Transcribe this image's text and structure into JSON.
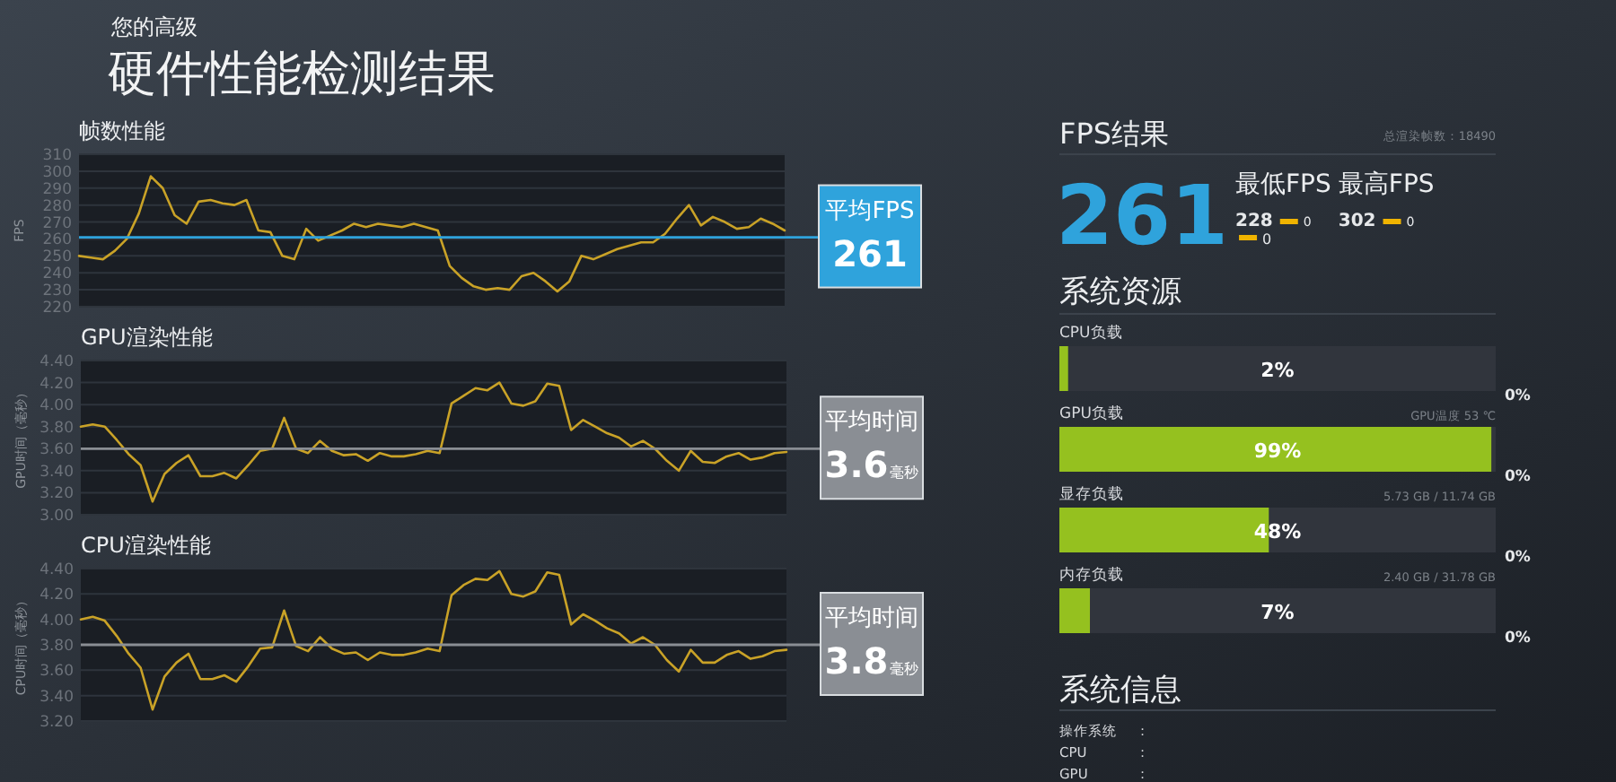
{
  "chart_data": [
    {
      "type": "other",
      "title": "硬件性能检测结果",
      "subtitle": "您的高级"
    },
    {
      "type": "line",
      "title": "帧数性能",
      "ylabel": "FPS",
      "grid": "y",
      "categories": [
        null,
        null,
        null,
        null,
        null,
        null,
        null,
        null,
        null,
        null,
        null,
        null,
        null,
        null,
        null,
        null,
        null,
        null,
        null,
        null,
        null,
        null,
        null,
        null,
        null,
        null,
        null,
        null,
        null,
        null,
        null,
        null,
        null,
        null,
        null,
        null,
        null,
        null,
        null,
        null,
        null,
        null,
        null,
        null,
        null,
        null,
        null,
        null,
        null,
        null,
        null,
        null,
        null,
        null,
        null,
        null,
        null,
        null,
        null,
        null
      ],
      "series": [
        {
          "color": "#c9a227",
          "values": [
            250,
            249,
            248,
            253,
            260,
            275,
            297,
            290,
            274,
            269,
            282,
            283,
            281,
            280,
            283,
            265,
            264,
            250,
            248,
            266,
            259,
            262,
            265,
            269,
            267,
            269,
            268,
            267,
            269,
            267,
            265,
            244,
            237,
            232,
            230,
            231,
            230,
            238,
            240,
            235,
            229,
            235,
            250,
            248,
            251,
            254,
            256,
            258,
            258,
            263,
            272,
            280,
            268,
            273,
            270,
            266,
            267,
            272,
            269,
            265
          ]
        }
      ],
      "ylim": [
        220,
        310
      ],
      "yticks": [
        220,
        230,
        240,
        250,
        260,
        270,
        280,
        290,
        300,
        310
      ],
      "ref_lines": [
        {
          "axis": "y",
          "value": 261,
          "label": "平均FPS 261",
          "color": "#2fa3dc"
        }
      ]
    },
    {
      "type": "line",
      "title": "GPU渲染性能",
      "ylabel": "GPU时间（毫秒）",
      "grid": "y",
      "categories": [
        null,
        null,
        null,
        null,
        null,
        null,
        null,
        null,
        null,
        null,
        null,
        null,
        null,
        null,
        null,
        null,
        null,
        null,
        null,
        null,
        null,
        null,
        null,
        null,
        null,
        null,
        null,
        null,
        null,
        null,
        null,
        null,
        null,
        null,
        null,
        null,
        null,
        null,
        null,
        null,
        null,
        null,
        null,
        null,
        null,
        null,
        null,
        null,
        null,
        null,
        null,
        null,
        null,
        null,
        null,
        null,
        null,
        null,
        null,
        null
      ],
      "series": [
        {
          "color": "#c9a227",
          "values": [
            3.8,
            3.82,
            3.8,
            3.68,
            3.55,
            3.45,
            3.12,
            3.37,
            3.47,
            3.54,
            3.35,
            3.35,
            3.38,
            3.33,
            3.45,
            3.58,
            3.6,
            3.88,
            3.6,
            3.56,
            3.67,
            3.58,
            3.54,
            3.55,
            3.49,
            3.56,
            3.53,
            3.53,
            3.55,
            3.58,
            3.56,
            4.01,
            4.08,
            4.15,
            4.13,
            4.2,
            4.01,
            3.99,
            4.03,
            4.19,
            4.17,
            3.77,
            3.86,
            3.8,
            3.74,
            3.7,
            3.62,
            3.67,
            3.6,
            3.49,
            3.4,
            3.58,
            3.48,
            3.47,
            3.53,
            3.56,
            3.5,
            3.52,
            3.56,
            3.57
          ]
        }
      ],
      "ylim": [
        3.0,
        4.4
      ],
      "yticks": [
        {
          "value": 3.0,
          "label": "3.00"
        },
        {
          "value": 3.2,
          "label": "3.20"
        },
        {
          "value": 3.4,
          "label": "3.40"
        },
        {
          "value": 3.6,
          "label": "3.60"
        },
        {
          "value": 3.8,
          "label": "3.80"
        },
        {
          "value": 4.0,
          "label": "4.00"
        },
        {
          "value": 4.2,
          "label": "4.20"
        },
        {
          "value": 4.4,
          "label": "4.40"
        }
      ],
      "ref_lines": [
        {
          "axis": "y",
          "value": 3.6,
          "label": "平均时间 3.6毫秒",
          "color": "#8a8e94"
        }
      ]
    },
    {
      "type": "line",
      "title": "CPU渲染性能",
      "ylabel": "CPU时间（毫秒）",
      "grid": "y",
      "categories": [
        null,
        null,
        null,
        null,
        null,
        null,
        null,
        null,
        null,
        null,
        null,
        null,
        null,
        null,
        null,
        null,
        null,
        null,
        null,
        null,
        null,
        null,
        null,
        null,
        null,
        null,
        null,
        null,
        null,
        null,
        null,
        null,
        null,
        null,
        null,
        null,
        null,
        null,
        null,
        null,
        null,
        null,
        null,
        null,
        null,
        null,
        null,
        null,
        null,
        null,
        null,
        null,
        null,
        null,
        null,
        null,
        null,
        null,
        null,
        null
      ],
      "series": [
        {
          "color": "#c9a227",
          "values": [
            4.0,
            4.02,
            3.99,
            3.87,
            3.73,
            3.62,
            3.29,
            3.55,
            3.66,
            3.73,
            3.53,
            3.53,
            3.56,
            3.51,
            3.63,
            3.77,
            3.78,
            4.07,
            3.79,
            3.75,
            3.86,
            3.77,
            3.73,
            3.74,
            3.68,
            3.74,
            3.72,
            3.72,
            3.74,
            3.77,
            3.75,
            4.19,
            4.27,
            4.32,
            4.31,
            4.38,
            4.2,
            4.18,
            4.22,
            4.37,
            4.35,
            3.96,
            4.04,
            3.99,
            3.93,
            3.89,
            3.81,
            3.86,
            3.8,
            3.68,
            3.59,
            3.76,
            3.66,
            3.66,
            3.72,
            3.75,
            3.69,
            3.71,
            3.75,
            3.76
          ]
        }
      ],
      "ylim": [
        3.2,
        4.4
      ],
      "yticks": [
        {
          "value": 3.2,
          "label": "3.20"
        },
        {
          "value": 3.4,
          "label": "3.40"
        },
        {
          "value": 3.6,
          "label": "3.60"
        },
        {
          "value": 3.8,
          "label": "3.80"
        },
        {
          "value": 4.0,
          "label": "4.00"
        },
        {
          "value": 4.2,
          "label": "4.20"
        },
        {
          "value": 4.4,
          "label": "4.40"
        }
      ],
      "ref_lines": [
        {
          "axis": "y",
          "value": 3.8,
          "label": "平均时间 3.8毫秒",
          "color": "#8a8e94"
        }
      ]
    },
    {
      "type": "other",
      "title": "FPS结果",
      "annotations": [
        "总渲染帧数：18490",
        "261",
        "0",
        "最低FPS",
        "最高FPS",
        "228",
        "0",
        "302",
        "0"
      ]
    },
    {
      "type": "bar",
      "orientation": "horizontal",
      "title": "系统资源",
      "categories": [
        "CPU负载",
        "GPU负载",
        "显存负载",
        "内存负载"
      ],
      "values": [
        2,
        99,
        48,
        7
      ],
      "value_labels": [
        "2%",
        "99%",
        "48%",
        "7%"
      ],
      "color": "#95c11f",
      "xlim": [
        0,
        100
      ],
      "annotations": [
        "0%",
        "0%",
        "0%",
        "0%",
        "GPU温度 53 ℃",
        "5.73 GB / 11.74 GB",
        "2.40 GB / 31.78 GB"
      ]
    },
    {
      "type": "other",
      "title": "系统信息",
      "annotations": [
        "操作系统",
        ":",
        "CPU",
        ":",
        "GPU",
        ":"
      ]
    }
  ]
}
